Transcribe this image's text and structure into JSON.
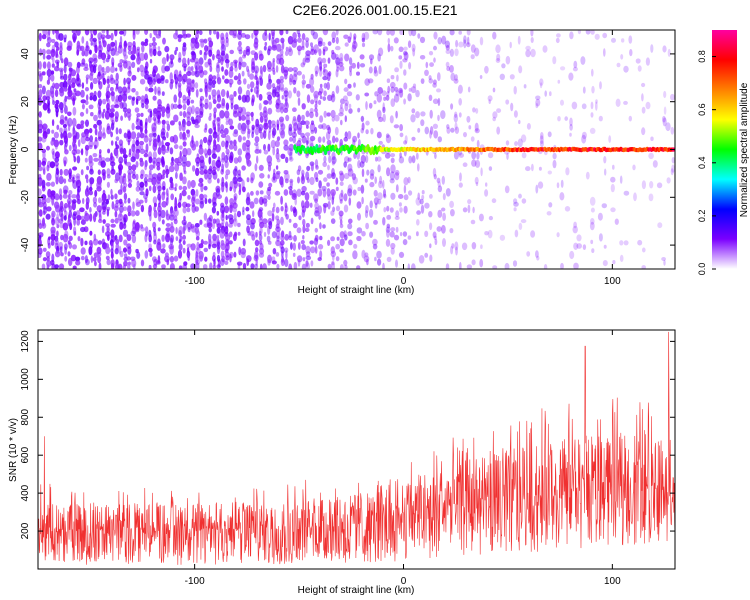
{
  "title": "C2E6.2026.001.00.15.E21",
  "chart_data": [
    {
      "type": "heatmap",
      "xlabel": "Height of straight line (km)",
      "ylabel": "Frequency (Hz)",
      "xlim": [
        -175,
        130
      ],
      "ylim": [
        -50,
        50
      ],
      "xticks": [
        -100,
        0,
        100
      ],
      "yticks": [
        -40,
        -20,
        0,
        20,
        40
      ],
      "colorbar": {
        "label": "Normalized spectral amplitude",
        "range": [
          0,
          0.9
        ],
        "ticks": [
          0.0,
          0.2,
          0.4,
          0.6,
          0.8
        ],
        "colors": [
          "#ffffff",
          "#7b00ff",
          "#0000ff",
          "#00ffff",
          "#00ff00",
          "#ffff00",
          "#ff8000",
          "#ff0000",
          "#ff00a0"
        ]
      },
      "line_feature": {
        "frequency": 0,
        "starts_at_height": -52,
        "description_values": [
          {
            "x": -50,
            "amplitude": 0.45
          },
          {
            "x": -20,
            "amplitude": 0.5
          },
          {
            "x": 0,
            "amplitude": 0.6
          },
          {
            "x": 30,
            "amplitude": 0.7
          },
          {
            "x": 60,
            "amplitude": 0.8
          },
          {
            "x": 130,
            "amplitude": 0.82
          }
        ]
      },
      "background_noise": [
        {
          "x": -175,
          "density": 0.95
        },
        {
          "x": -100,
          "density": 0.9
        },
        {
          "x": -50,
          "density": 0.7
        },
        {
          "x": 0,
          "density": 0.35
        },
        {
          "x": 50,
          "density": 0.15
        },
        {
          "x": 130,
          "density": 0.1
        }
      ]
    },
    {
      "type": "line",
      "xlabel": "Height of straight line (km)",
      "ylabel": "SNR (10 * v/v)",
      "xlim": [
        -175,
        130
      ],
      "ylim": [
        0,
        1260
      ],
      "xticks": [
        -100,
        0,
        100
      ],
      "yticks": [
        200,
        400,
        600,
        800,
        1000,
        1200
      ],
      "series": [
        {
          "color": "#f03030",
          "envelope": [
            {
              "x": -175,
              "low": 20,
              "mean": 200,
              "high": 460
            },
            {
              "x": -150,
              "low": 20,
              "mean": 200,
              "high": 430
            },
            {
              "x": -100,
              "low": 20,
              "mean": 200,
              "high": 440
            },
            {
              "x": -50,
              "low": 20,
              "mean": 210,
              "high": 470
            },
            {
              "x": -10,
              "low": 30,
              "mean": 240,
              "high": 520
            },
            {
              "x": 20,
              "low": 60,
              "mean": 320,
              "high": 680
            },
            {
              "x": 50,
              "low": 80,
              "mean": 370,
              "high": 800
            },
            {
              "x": 80,
              "low": 100,
              "mean": 400,
              "high": 900
            },
            {
              "x": 100,
              "low": 120,
              "mean": 420,
              "high": 900
            },
            {
              "x": 130,
              "low": 140,
              "mean": 440,
              "high": 950
            }
          ],
          "peaks": [
            {
              "x": -172,
              "value": 700
            },
            {
              "x": 87,
              "value": 1175
            },
            {
              "x": 127,
              "value": 1250
            }
          ]
        }
      ]
    }
  ]
}
